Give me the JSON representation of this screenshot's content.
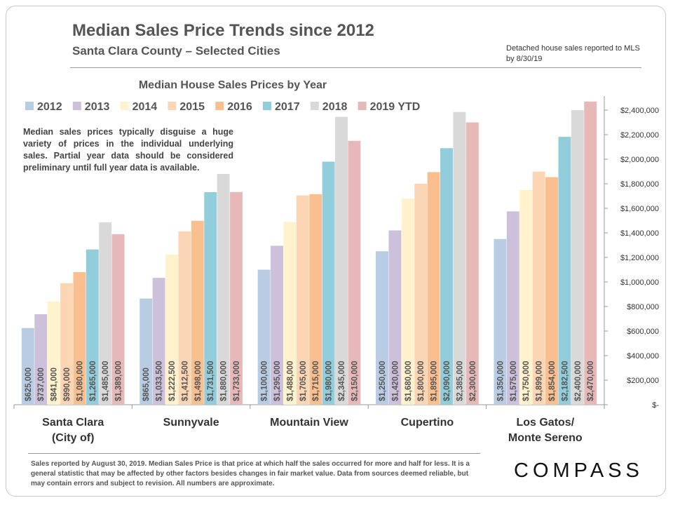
{
  "header": {
    "title": "Median Sales Price Trends since 2012",
    "subtitle": "Santa Clara County – Selected Cities",
    "note": "Detached house sales reported to MLS by 8/30/19"
  },
  "description": "Median sales prices typically disguise a huge variety of prices in the individual underlying sales. Partial year data should be considered preliminary until full year data is available.",
  "footnote": "Sales reported by August 30, 2019. Median Sales Price is that price at which half the sales occurred for more and half for less. It is a general statistic that may be affected by other factors besides changes in fair market value. Data from sources deemed reliable, but may contain errors and subject to revision.  All numbers are approximate.",
  "logo": "COMPASS",
  "colors": {
    "series": [
      "#b8cce4",
      "#ccc0da",
      "#fff2cc",
      "#fcd5b5",
      "#fabf8f",
      "#92cddc",
      "#d9d9d9",
      "#e6b9b8"
    ],
    "text": "#555555",
    "axis": "#999999"
  },
  "chart_data": {
    "type": "bar",
    "title": "Median House Sales Prices by Year",
    "categories": [
      [
        "Santa Clara",
        "(City of)"
      ],
      [
        "Sunnyvale"
      ],
      [
        "Mountain View"
      ],
      [
        "Cupertino"
      ],
      [
        "Los Gatos/",
        "Monte Sereno"
      ]
    ],
    "series": [
      {
        "name": "2012",
        "values": [
          625000,
          865000,
          1100000,
          1250000,
          1350000
        ],
        "labels": [
          "$625,000",
          "$865,000",
          "$1,100,000",
          "$1,250,000",
          "$1,350,000"
        ]
      },
      {
        "name": "2013",
        "values": [
          737000,
          1033500,
          1295000,
          1420000,
          1575000
        ],
        "labels": [
          "$737,000",
          "$1,033,500",
          "$1,295,000",
          "$1,420,000",
          "$1,575,000"
        ]
      },
      {
        "name": "2014",
        "values": [
          841000,
          1222500,
          1488000,
          1680000,
          1750000
        ],
        "labels": [
          "$841,000",
          "$1,222,500",
          "$1,488,000",
          "$1,680,000",
          "$1,750,000"
        ]
      },
      {
        "name": "2015",
        "values": [
          990000,
          1412500,
          1705000,
          1800000,
          1899000
        ],
        "labels": [
          "$990,000",
          "$1,412,500",
          "$1,705,000",
          "$1,800,000",
          "$1,899,000"
        ]
      },
      {
        "name": "2016",
        "values": [
          1080000,
          1498000,
          1715000,
          1895000,
          1854000
        ],
        "labels": [
          "$1,080,000",
          "$1,498,000",
          "$1,715,000",
          "$1,895,000",
          "$1,854,000"
        ]
      },
      {
        "name": "2017",
        "values": [
          1265000,
          1731500,
          1980000,
          2090000,
          2182500
        ],
        "labels": [
          "$1,265,000",
          "$1,731,500",
          "$1,980,000",
          "$2,090,000",
          "$2,182,500"
        ]
      },
      {
        "name": "2018",
        "values": [
          1485000,
          1880000,
          2345000,
          2385000,
          2400000
        ],
        "labels": [
          "$1,485,000",
          "$1,880,000",
          "$2,345,000",
          "$2,385,000",
          "$2,400,000"
        ]
      },
      {
        "name": "2019 YTD",
        "values": [
          1389000,
          1733000,
          2150000,
          2300000,
          2470000
        ],
        "labels": [
          "$1,389,000",
          "$1,733,000",
          "$2,150,000",
          "$2,300,000",
          "$2,470,000"
        ]
      }
    ],
    "ylim": [
      0,
      2400000
    ],
    "yticks": [
      0,
      200000,
      400000,
      600000,
      800000,
      1000000,
      1200000,
      1400000,
      1600000,
      1800000,
      2000000,
      2200000,
      2400000
    ],
    "ytick_labels": [
      "$-",
      "$200,000",
      "$400,000",
      "$600,000",
      "$800,000",
      "$1,000,000",
      "$1,200,000",
      "$1,400,000",
      "$1,600,000",
      "$1,800,000",
      "$2,000,000",
      "$2,200,000",
      "$2,400,000"
    ],
    "yaxis_position": "right",
    "legend_position": "top-left",
    "grid": false
  }
}
